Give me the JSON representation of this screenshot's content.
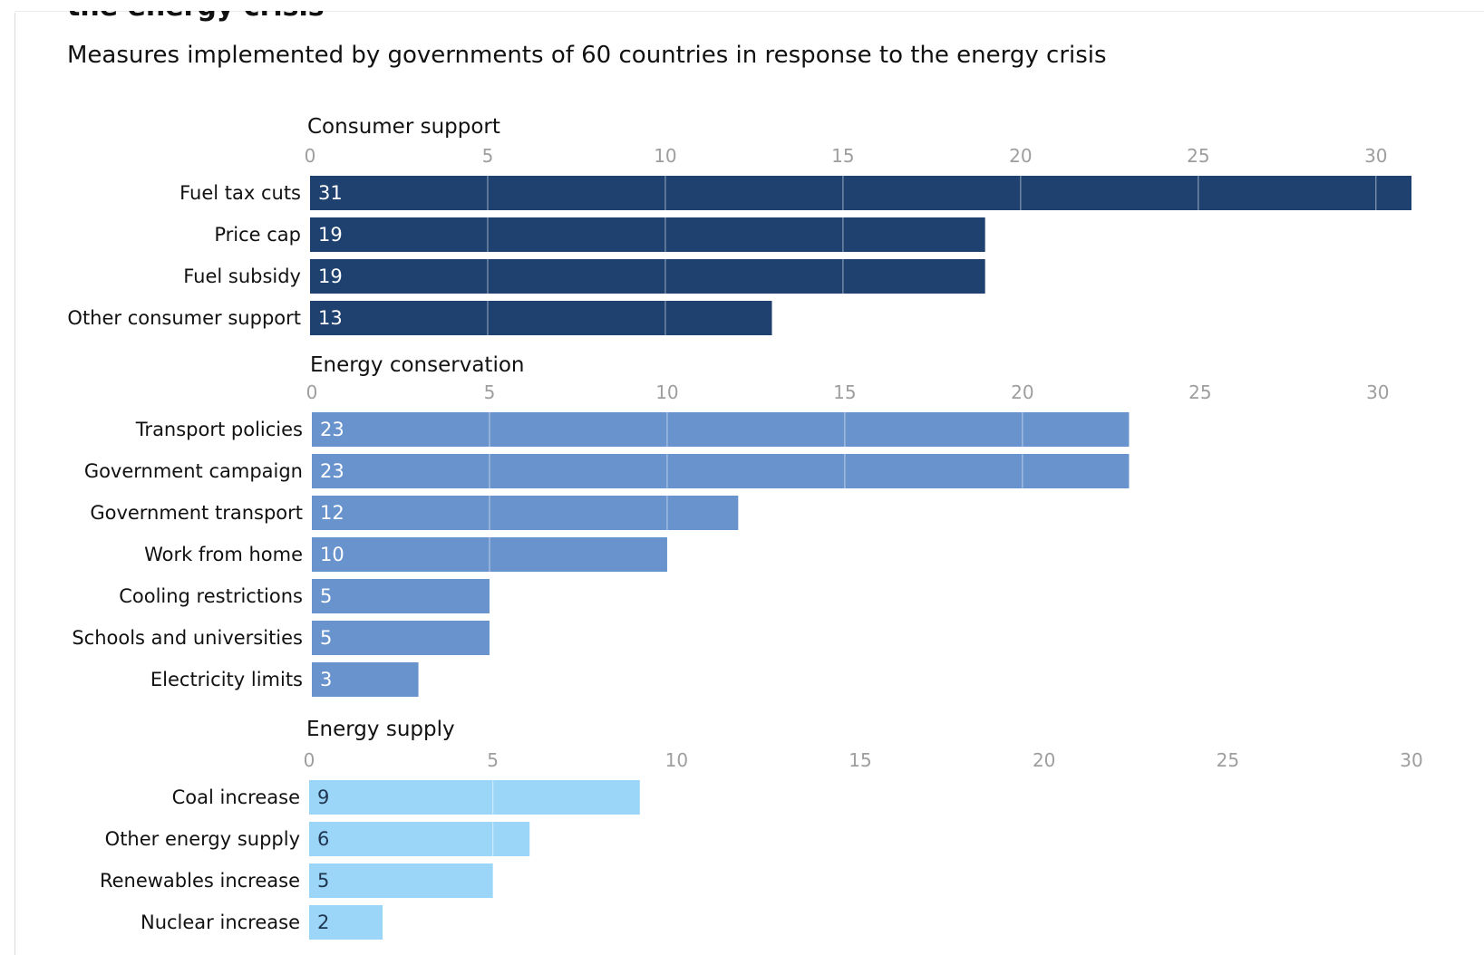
{
  "header": {
    "cut_title": "the energy crisis",
    "subtitle": "Measures implemented by governments of 60 countries in response to the energy crisis"
  },
  "colors": {
    "consumer_support": "#1f4170",
    "energy_conservation": "#6993cc",
    "energy_supply": "#9bd6f8",
    "tick_text": "#9e9e9e",
    "grid_line": "#ffffff"
  },
  "chart_data": [
    {
      "type": "bar",
      "orientation": "horizontal",
      "title": "Consumer support",
      "ticks": [
        "0",
        "5",
        "10",
        "15",
        "20",
        "25",
        "30"
      ],
      "xlim": [
        0,
        31
      ],
      "categories": [
        "Fuel tax cuts",
        "Price cap",
        "Fuel subsidy",
        "Other consumer support"
      ],
      "values": [
        31,
        19,
        19,
        13
      ]
    },
    {
      "type": "bar",
      "orientation": "horizontal",
      "title": "Energy conservation",
      "ticks": [
        "0",
        "5",
        "10",
        "15",
        "20",
        "25",
        "30"
      ],
      "xlim": [
        0,
        31
      ],
      "categories": [
        "Transport policies",
        "Government campaign",
        "Government transport",
        "Work from home",
        "Cooling restrictions",
        "Schools and universities",
        "Electricity limits"
      ],
      "values": [
        23,
        23,
        12,
        10,
        5,
        5,
        3
      ]
    },
    {
      "type": "bar",
      "orientation": "horizontal",
      "title": "Energy supply",
      "ticks": [
        "0",
        "5",
        "10",
        "15",
        "20",
        "25",
        "30"
      ],
      "xlim": [
        0,
        30
      ],
      "categories": [
        "Coal increase",
        "Other energy supply",
        "Renewables increase",
        "Nuclear increase"
      ],
      "values": [
        9,
        6,
        5,
        2
      ]
    }
  ]
}
